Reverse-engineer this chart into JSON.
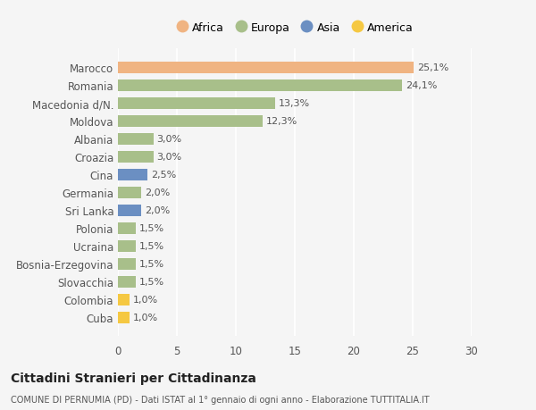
{
  "categories": [
    "Cuba",
    "Colombia",
    "Slovacchia",
    "Bosnia-Erzegovina",
    "Ucraina",
    "Polonia",
    "Sri Lanka",
    "Germania",
    "Cina",
    "Croazia",
    "Albania",
    "Moldova",
    "Macedonia d/N.",
    "Romania",
    "Marocco"
  ],
  "values": [
    1.0,
    1.0,
    1.5,
    1.5,
    1.5,
    1.5,
    2.0,
    2.0,
    2.5,
    3.0,
    3.0,
    12.3,
    13.3,
    24.1,
    25.1
  ],
  "colors": [
    "#f5c842",
    "#f5c842",
    "#a8bf8a",
    "#a8bf8a",
    "#a8bf8a",
    "#a8bf8a",
    "#6b8fc2",
    "#a8bf8a",
    "#6b8fc2",
    "#a8bf8a",
    "#a8bf8a",
    "#a8bf8a",
    "#a8bf8a",
    "#a8bf8a",
    "#f0b482"
  ],
  "labels": [
    "1,0%",
    "1,0%",
    "1,5%",
    "1,5%",
    "1,5%",
    "1,5%",
    "2,0%",
    "2,0%",
    "2,5%",
    "3,0%",
    "3,0%",
    "12,3%",
    "13,3%",
    "24,1%",
    "25,1%"
  ],
  "legend": [
    {
      "label": "Africa",
      "color": "#f0b482"
    },
    {
      "label": "Europa",
      "color": "#a8bf8a"
    },
    {
      "label": "Asia",
      "color": "#6b8fc2"
    },
    {
      "label": "America",
      "color": "#f5c842"
    }
  ],
  "xlim": [
    0,
    30
  ],
  "xticks": [
    0,
    5,
    10,
    15,
    20,
    25,
    30
  ],
  "title_main": "Cittadini Stranieri per Cittadinanza",
  "title_sub": "COMUNE DI PERNUMIA (PD) - Dati ISTAT al 1° gennaio di ogni anno - Elaborazione TUTTITALIA.IT",
  "bg_color": "#f5f5f5",
  "bar_height": 0.65
}
